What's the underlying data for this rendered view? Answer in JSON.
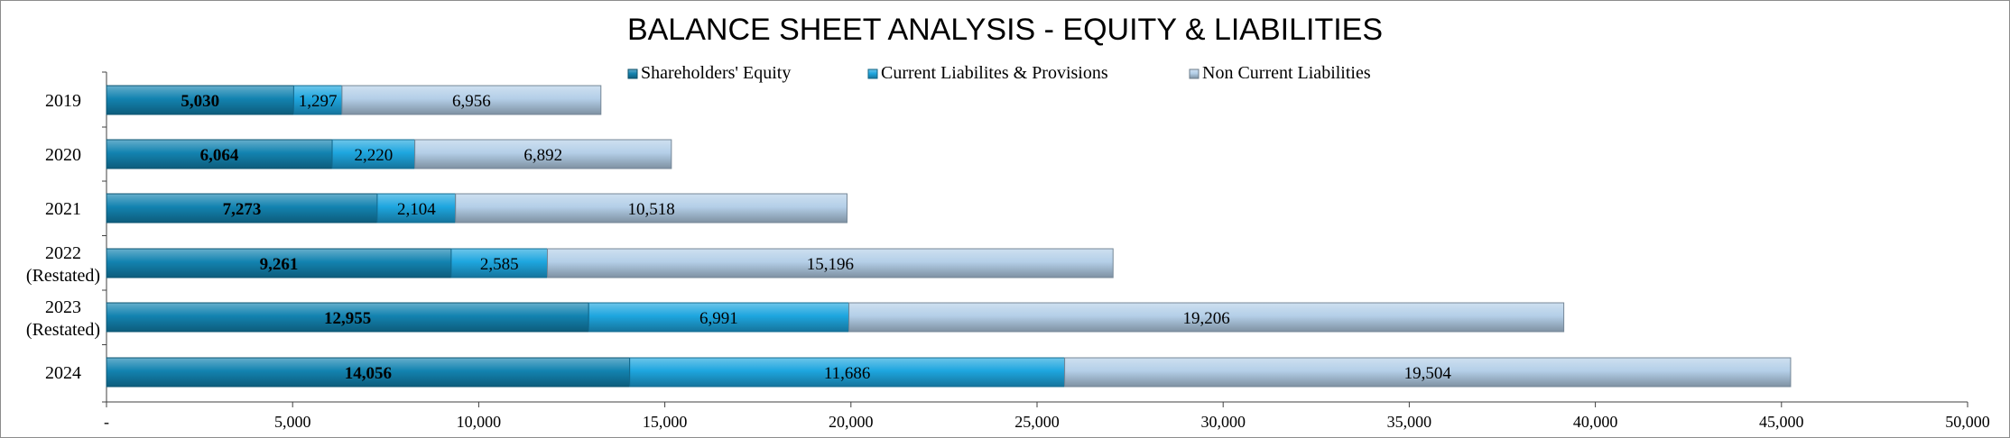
{
  "chart_data": {
    "type": "bar",
    "orientation": "horizontal",
    "stacked": true,
    "title": "BALANCE SHEET ANALYSIS - EQUITY & LIABILITIES",
    "categories": [
      "2019",
      "2020",
      "2021",
      "2022\n(Restated)",
      "2023\n(Restated)",
      "2024"
    ],
    "series": [
      {
        "name": "Shareholders' Equity",
        "values": [
          5030,
          6064,
          7273,
          9261,
          12955,
          14056
        ],
        "labels": [
          "5,030",
          "6,064",
          "7,273",
          "9,261",
          "12,955",
          "14,056"
        ],
        "color": "#1383b0",
        "label_bold": true
      },
      {
        "name": "Current Liabilites & Provisions",
        "values": [
          1297,
          2220,
          2104,
          2585,
          6991,
          11686
        ],
        "labels": [
          "1,297",
          "2,220",
          "2,104",
          "2,585",
          "6,991",
          "11,686"
        ],
        "color": "#1ea6df",
        "label_bold": false
      },
      {
        "name": "Non Current Liabilities",
        "values": [
          6956,
          6892,
          10518,
          15196,
          19206,
          19504
        ],
        "labels": [
          "6,956",
          "6,892",
          "10,518",
          "15,196",
          "19,206",
          "19,504"
        ],
        "color": "#b4cfe8",
        "label_bold": false
      }
    ],
    "xlim": [
      0,
      50000
    ],
    "xticks": [
      0,
      5000,
      10000,
      15000,
      20000,
      25000,
      30000,
      35000,
      40000,
      45000,
      50000
    ],
    "xtick_labels": [
      "-",
      "5,000",
      "10,000",
      "15,000",
      "20,000",
      "25,000",
      "30,000",
      "35,000",
      "40,000",
      "45,000",
      "50,000"
    ],
    "legend_position": "top",
    "grid": false
  }
}
